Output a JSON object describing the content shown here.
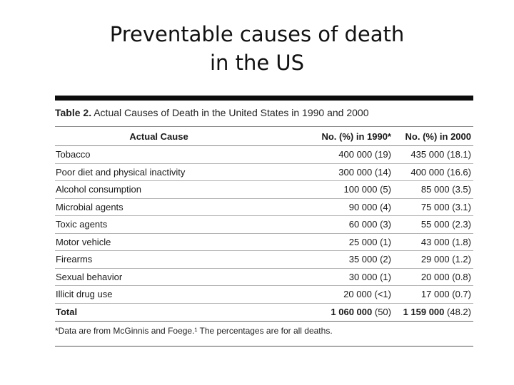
{
  "slide": {
    "title_line1": "Preventable causes of death",
    "title_line2": "in the US"
  },
  "table": {
    "caption_label": "Table 2.",
    "caption_text": "Actual Causes of Death in the United States in 1990 and 2000",
    "headers": {
      "cause": "Actual Cause",
      "y1990": "No. (%) in 1990*",
      "y2000": "No. (%) in 2000"
    },
    "rows": [
      {
        "cause": "Tobacco",
        "y1990": "400 000 (19)",
        "y2000": "435 000 (18.1)"
      },
      {
        "cause": "Poor diet and physical inactivity",
        "y1990": "300 000 (14)",
        "y2000": "400 000 (16.6)"
      },
      {
        "cause": "Alcohol consumption",
        "y1990": "100 000 (5)",
        "y2000": "85 000 (3.5)"
      },
      {
        "cause": "Microbial agents",
        "y1990": "90 000 (4)",
        "y2000": "75 000 (3.1)"
      },
      {
        "cause": "Toxic agents",
        "y1990": "60 000 (3)",
        "y2000": "55 000 (2.3)"
      },
      {
        "cause": "Motor vehicle",
        "y1990": "25 000 (1)",
        "y2000": "43 000 (1.8)"
      },
      {
        "cause": "Firearms",
        "y1990": "35 000 (2)",
        "y2000": "29 000 (1.2)"
      },
      {
        "cause": "Sexual behavior",
        "y1990": "30 000 (1)",
        "y2000": "20 000 (0.8)"
      },
      {
        "cause": "Illicit drug use",
        "y1990": "20 000 (<1)",
        "y2000": "17 000 (0.7)"
      }
    ],
    "total": {
      "label": "Total",
      "y1990_num": "1 060 000",
      "y1990_pct": "(50)",
      "y2000_num": "1 159 000",
      "y2000_pct": "(48.2)"
    },
    "footnote": "*Data are from McGinnis and Foege.¹ The percentages are for all deaths."
  }
}
